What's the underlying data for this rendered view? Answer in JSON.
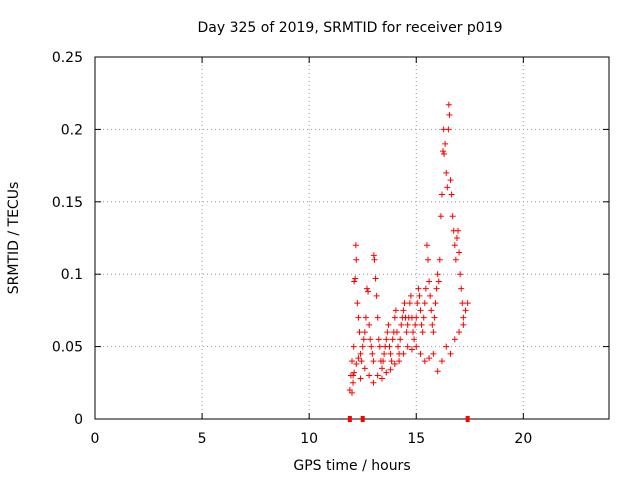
{
  "chart_data": {
    "type": "scatter",
    "title": "Day 325 of 2019, SRMTID for receiver p019",
    "xlabel": "GPS time / hours",
    "ylabel": "SRMTID / TECUs",
    "xlim": [
      0,
      24
    ],
    "ylim": [
      0,
      0.25
    ],
    "grid": true,
    "marker": "+",
    "color": "#ff0000",
    "x_ticks": [
      0,
      5,
      10,
      15,
      20
    ],
    "y_ticks": [
      0,
      0.05,
      0.1,
      0.15,
      0.2,
      0.25
    ],
    "x_tick_labels": [
      "0",
      "5",
      "10",
      "15",
      "20"
    ],
    "y_tick_labels": [
      "0",
      "0.05",
      "0.1",
      "0.15",
      "0.2",
      "0.25"
    ],
    "gap_markers_x": [
      11.9,
      12.5,
      17.4
    ],
    "series": [
      {
        "name": "SRMTID",
        "points": [
          [
            11.9,
            0.02
          ],
          [
            11.95,
            0.03
          ],
          [
            12.0,
            0.04
          ],
          [
            12.05,
            0.03
          ],
          [
            12.08,
            0.05
          ],
          [
            12.1,
            0.095
          ],
          [
            12.15,
            0.097
          ],
          [
            12.18,
            0.12
          ],
          [
            12.2,
            0.11
          ],
          [
            12.25,
            0.08
          ],
          [
            12.3,
            0.07
          ],
          [
            12.35,
            0.06
          ],
          [
            12.4,
            0.045
          ],
          [
            12.45,
            0.04
          ],
          [
            12.5,
            0.05
          ],
          [
            12.55,
            0.055
          ],
          [
            12.6,
            0.06
          ],
          [
            12.65,
            0.07
          ],
          [
            12.7,
            0.09
          ],
          [
            12.75,
            0.088
          ],
          [
            12.8,
            0.065
          ],
          [
            12.85,
            0.055
          ],
          [
            12.9,
            0.05
          ],
          [
            12.95,
            0.045
          ],
          [
            13.0,
            0.04
          ],
          [
            13.02,
            0.113
          ],
          [
            13.05,
            0.11
          ],
          [
            13.1,
            0.097
          ],
          [
            13.15,
            0.085
          ],
          [
            13.2,
            0.07
          ],
          [
            13.25,
            0.055
          ],
          [
            13.3,
            0.05
          ],
          [
            13.35,
            0.04
          ],
          [
            13.4,
            0.035
          ],
          [
            13.45,
            0.04
          ],
          [
            13.5,
            0.045
          ],
          [
            13.55,
            0.05
          ],
          [
            13.6,
            0.055
          ],
          [
            13.65,
            0.06
          ],
          [
            13.7,
            0.065
          ],
          [
            13.75,
            0.05
          ],
          [
            13.8,
            0.045
          ],
          [
            13.85,
            0.04
          ],
          [
            13.9,
            0.055
          ],
          [
            13.95,
            0.06
          ],
          [
            14.0,
            0.07
          ],
          [
            14.05,
            0.075
          ],
          [
            14.1,
            0.06
          ],
          [
            14.15,
            0.05
          ],
          [
            14.2,
            0.045
          ],
          [
            14.25,
            0.055
          ],
          [
            14.3,
            0.065
          ],
          [
            14.35,
            0.07
          ],
          [
            14.4,
            0.075
          ],
          [
            14.45,
            0.08
          ],
          [
            14.5,
            0.07
          ],
          [
            14.55,
            0.06
          ],
          [
            14.6,
            0.065
          ],
          [
            14.65,
            0.07
          ],
          [
            14.7,
            0.08
          ],
          [
            14.75,
            0.085
          ],
          [
            14.8,
            0.07
          ],
          [
            14.85,
            0.06
          ],
          [
            14.9,
            0.055
          ],
          [
            14.95,
            0.065
          ],
          [
            15.0,
            0.07
          ],
          [
            15.05,
            0.08
          ],
          [
            15.1,
            0.09
          ],
          [
            15.15,
            0.085
          ],
          [
            15.2,
            0.075
          ],
          [
            15.25,
            0.065
          ],
          [
            15.3,
            0.06
          ],
          [
            15.35,
            0.07
          ],
          [
            15.4,
            0.08
          ],
          [
            15.45,
            0.09
          ],
          [
            15.5,
            0.12
          ],
          [
            15.55,
            0.11
          ],
          [
            15.6,
            0.095
          ],
          [
            15.65,
            0.085
          ],
          [
            15.7,
            0.075
          ],
          [
            15.75,
            0.065
          ],
          [
            15.8,
            0.06
          ],
          [
            15.85,
            0.07
          ],
          [
            15.9,
            0.08
          ],
          [
            15.95,
            0.09
          ],
          [
            16.0,
            0.1
          ],
          [
            16.05,
            0.095
          ],
          [
            16.1,
            0.11
          ],
          [
            16.15,
            0.14
          ],
          [
            16.2,
            0.155
          ],
          [
            16.25,
            0.185
          ],
          [
            16.28,
            0.2
          ],
          [
            16.3,
            0.183
          ],
          [
            16.35,
            0.19
          ],
          [
            16.4,
            0.17
          ],
          [
            16.45,
            0.16
          ],
          [
            16.5,
            0.2
          ],
          [
            16.52,
            0.217
          ],
          [
            16.55,
            0.21
          ],
          [
            16.6,
            0.165
          ],
          [
            16.65,
            0.155
          ],
          [
            16.7,
            0.14
          ],
          [
            16.75,
            0.13
          ],
          [
            16.8,
            0.12
          ],
          [
            16.85,
            0.11
          ],
          [
            16.9,
            0.125
          ],
          [
            16.95,
            0.13
          ],
          [
            17.0,
            0.115
          ],
          [
            17.05,
            0.1
          ],
          [
            17.1,
            0.09
          ],
          [
            17.15,
            0.08
          ],
          [
            17.2,
            0.07
          ],
          [
            17.3,
            0.075
          ],
          [
            17.4,
            0.08
          ],
          [
            12.0,
            0.018
          ],
          [
            12.05,
            0.025
          ],
          [
            12.1,
            0.032
          ],
          [
            12.2,
            0.038
          ],
          [
            12.3,
            0.042
          ],
          [
            12.4,
            0.028
          ],
          [
            12.6,
            0.035
          ],
          [
            12.8,
            0.03
          ],
          [
            13.0,
            0.025
          ],
          [
            13.2,
            0.03
          ],
          [
            13.4,
            0.028
          ],
          [
            13.6,
            0.032
          ],
          [
            13.8,
            0.034
          ],
          [
            14.0,
            0.038
          ],
          [
            14.2,
            0.04
          ],
          [
            14.4,
            0.045
          ],
          [
            14.6,
            0.05
          ],
          [
            14.8,
            0.048
          ],
          [
            15.0,
            0.05
          ],
          [
            15.2,
            0.045
          ],
          [
            15.4,
            0.04
          ],
          [
            15.6,
            0.042
          ],
          [
            15.8,
            0.045
          ],
          [
            16.0,
            0.033
          ],
          [
            16.2,
            0.04
          ],
          [
            16.4,
            0.05
          ],
          [
            16.6,
            0.045
          ],
          [
            16.8,
            0.055
          ],
          [
            17.0,
            0.06
          ],
          [
            17.2,
            0.065
          ]
        ]
      }
    ]
  }
}
